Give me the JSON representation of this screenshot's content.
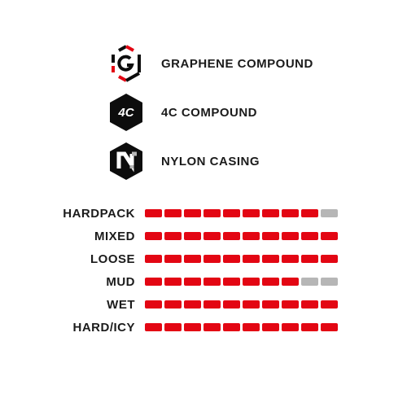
{
  "colors": {
    "active": "#e30613",
    "inactive": "#b6b6b6",
    "text": "#1b1b1b",
    "icon_black": "#0d0d0d",
    "icon_accent": "#e30613",
    "icon_gray": "#b6b6b6"
  },
  "features": [
    {
      "id": "graphene",
      "label": "GRAPHENE COMPOUND"
    },
    {
      "id": "4c",
      "label": "4C COMPOUND"
    },
    {
      "id": "nylon",
      "label": "NYLON CASING"
    }
  ],
  "ratings": {
    "segments": 10,
    "rows": [
      {
        "label": "HARDPACK",
        "value": 9
      },
      {
        "label": "MIXED",
        "value": 10
      },
      {
        "label": "LOOSE",
        "value": 10
      },
      {
        "label": "MUD",
        "value": 8
      },
      {
        "label": "WET",
        "value": 10
      },
      {
        "label": "HARD/ICY",
        "value": 10
      }
    ]
  }
}
